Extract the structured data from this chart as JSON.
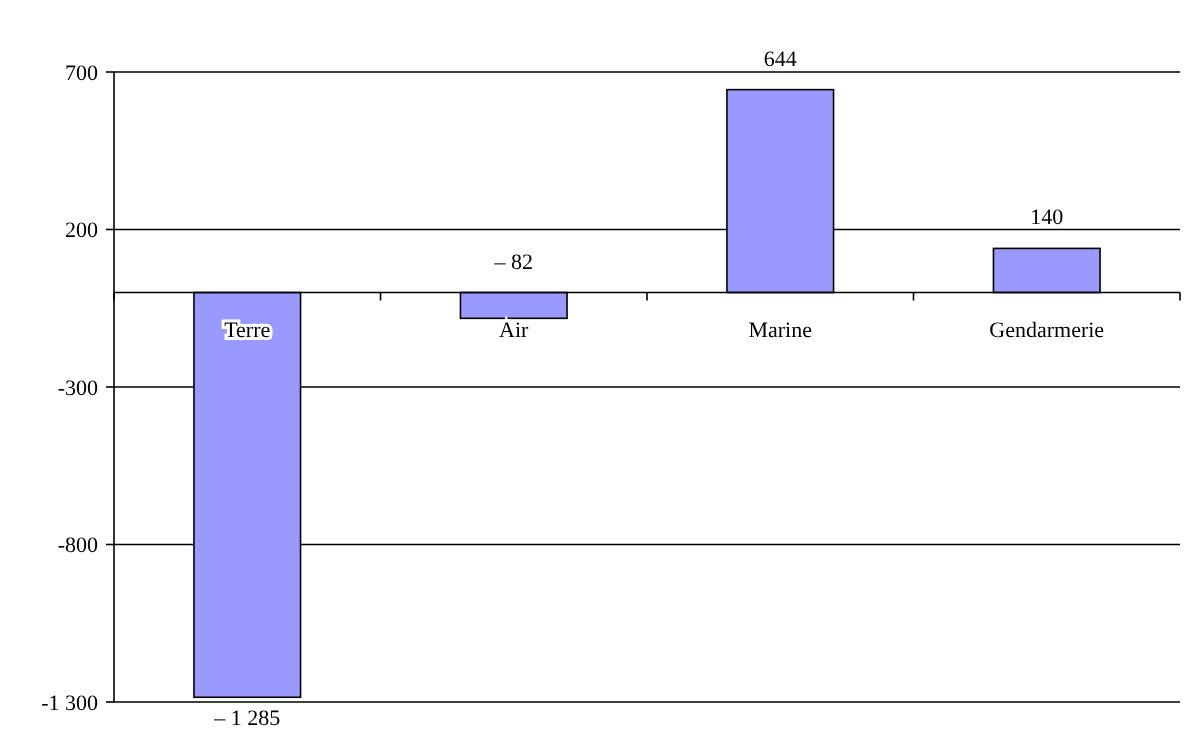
{
  "chart_data": {
    "type": "bar",
    "categories": [
      "Terre",
      "Air",
      "Marine",
      "Gendarmerie"
    ],
    "values": [
      -1285,
      -82,
      644,
      140
    ],
    "value_labels": [
      "– 1 285",
      "– 82",
      "644",
      "140"
    ],
    "color": "#9999ff",
    "ylim": [
      -1300,
      700
    ],
    "yticks": [
      700,
      200,
      -300,
      -800,
      {
        "value": -1300,
        "label": "-1 300"
      }
    ],
    "grid": "y"
  }
}
